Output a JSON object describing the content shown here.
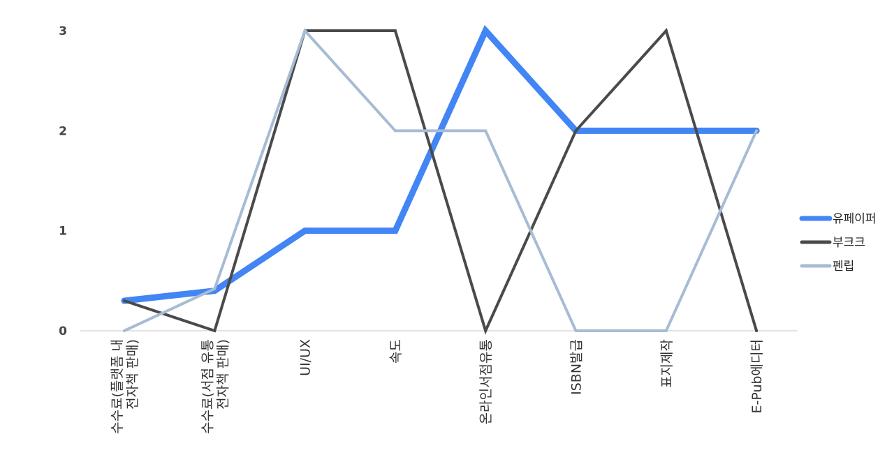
{
  "chart_data": {
    "type": "line",
    "title": "",
    "xlabel": "",
    "ylabel": "",
    "ylim": [
      0,
      3
    ],
    "yticks": [
      0,
      1,
      2,
      3
    ],
    "grid": false,
    "legend_position": "right",
    "categories": [
      [
        "수수료(플랫폼 내",
        "전자책 판매)"
      ],
      [
        "수수료(서점 유통",
        "전자책 판매)"
      ],
      [
        "UI/UX"
      ],
      [
        "속도"
      ],
      [
        "온라인서점유통"
      ],
      [
        "ISBN발급"
      ],
      [
        "표지제작"
      ],
      [
        "E-Pub에디터"
      ]
    ],
    "series": [
      {
        "name": "유페이퍼",
        "color": "#4285F4",
        "values": [
          0.3,
          0.4,
          1,
          1,
          3,
          2,
          2,
          2
        ]
      },
      {
        "name": "부크크",
        "color": "#4A4A4A",
        "values": [
          0.3,
          0,
          3,
          3,
          0,
          2,
          3,
          0
        ]
      },
      {
        "name": "펜립",
        "color": "#A7BCD4",
        "values": [
          0,
          0.42,
          3,
          2,
          2,
          0,
          0,
          2
        ]
      }
    ]
  }
}
